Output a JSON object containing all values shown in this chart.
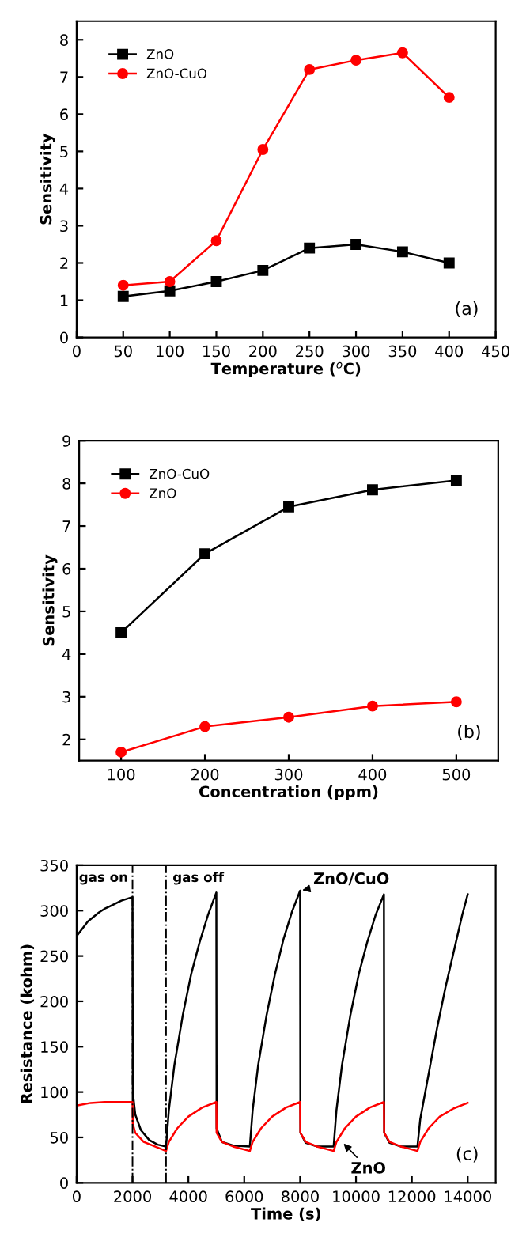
{
  "chart_data": [
    {
      "type": "line",
      "xlabel": "Temperature ($^{o}$C)",
      "ylabel": "Sensitivity",
      "x": [
        50,
        100,
        150,
        200,
        250,
        300,
        350,
        400
      ],
      "xlim": [
        0,
        450
      ],
      "xticks": [
        0,
        50,
        100,
        150,
        200,
        250,
        300,
        350,
        400,
        450
      ],
      "ylim": [
        0,
        8.5
      ],
      "yticks": [
        0,
        1,
        2,
        3,
        4,
        5,
        6,
        7,
        8
      ],
      "legend": "top left",
      "annotations": [
        "(a)"
      ],
      "series": [
        {
          "name": "ZnO",
          "color": "#000000",
          "marker": "square",
          "values": [
            1.1,
            1.25,
            1.5,
            1.8,
            2.4,
            2.5,
            2.3,
            2.0
          ]
        },
        {
          "name": "ZnO-CuO",
          "color": "#ff0000",
          "marker": "circle",
          "values": [
            1.4,
            1.5,
            2.6,
            5.05,
            7.2,
            7.45,
            7.65,
            6.45
          ]
        }
      ]
    },
    {
      "type": "line",
      "xlabel": "Concentration (ppm)",
      "ylabel": "Sensitivity",
      "x": [
        100,
        200,
        300,
        400,
        500
      ],
      "xlim": [
        50,
        550
      ],
      "xticks": [
        100,
        200,
        300,
        400,
        500
      ],
      "ylim": [
        1.5,
        9
      ],
      "yticks": [
        2,
        3,
        4,
        5,
        6,
        7,
        8,
        9
      ],
      "legend": "top left",
      "annotations": [
        "(b)"
      ],
      "series": [
        {
          "name": "ZnO-CuO",
          "color": "#000000",
          "marker": "square",
          "values": [
            4.5,
            6.35,
            7.45,
            7.85,
            8.07
          ]
        },
        {
          "name": "ZnO",
          "color": "#ff0000",
          "marker": "circle",
          "values": [
            1.7,
            2.3,
            2.52,
            2.78,
            2.88
          ]
        }
      ]
    },
    {
      "type": "line",
      "xlabel": "Time (s)",
      "ylabel": "Resistance (kohm)",
      "xlim": [
        0,
        15000
      ],
      "xticks": [
        0,
        2000,
        4000,
        6000,
        8000,
        10000,
        12000,
        14000
      ],
      "ylim": [
        0,
        350
      ],
      "yticks": [
        0,
        50,
        100,
        150,
        200,
        250,
        300,
        350
      ],
      "ref_lines": [
        {
          "axis": "x",
          "value": 2000,
          "label": "gas on",
          "line_style": "dashdot"
        },
        {
          "axis": "x",
          "value": 3200,
          "label": "gas off",
          "line_style": "dashdot"
        }
      ],
      "annotations": [
        {
          "text": "ZnO/CuO",
          "x": 8000,
          "y": 322
        },
        {
          "text": "ZnO",
          "x": 9500,
          "y": 45
        },
        "(c)"
      ],
      "series": [
        {
          "color": "#000000",
          "x": [
            0,
            200,
            400,
            600,
            800,
            1000,
            1200,
            1400,
            1600,
            1800,
            2000,
            2010,
            2100,
            2300,
            2600,
            2900,
            3200,
            3300,
            3500,
            3800,
            4100,
            4400,
            4700,
            5000,
            5010,
            5200,
            5600,
            6200,
            6300,
            6500,
            6800,
            7100,
            7400,
            7700,
            8000,
            8010,
            8200,
            8600,
            9200,
            9300,
            9500,
            9800,
            10100,
            10400,
            10700,
            11000,
            11010,
            11200,
            11600,
            12200,
            12300,
            12600,
            12900,
            13200,
            13500,
            13800,
            14000
          ],
          "values": [
            272,
            280,
            288,
            293,
            298,
            302,
            305,
            308,
            311,
            313,
            315,
            100,
            75,
            58,
            47,
            42,
            40,
            80,
            130,
            185,
            230,
            265,
            295,
            320,
            60,
            45,
            41,
            40,
            80,
            130,
            185,
            230,
            268,
            298,
            322,
            55,
            44,
            40,
            40,
            80,
            130,
            185,
            230,
            265,
            295,
            318,
            55,
            44,
            40,
            40,
            70,
            120,
            170,
            215,
            255,
            295,
            318
          ]
        },
        {
          "color": "#ff0000",
          "x": [
            0,
            500,
            1000,
            2000,
            2010,
            2100,
            2400,
            2800,
            3200,
            3300,
            3600,
            4000,
            4500,
            5000,
            5010,
            5200,
            5600,
            6200,
            6300,
            6600,
            7000,
            7500,
            8000,
            8010,
            8200,
            8600,
            9200,
            9300,
            9600,
            10000,
            10500,
            11000,
            11010,
            11200,
            11600,
            12200,
            12300,
            12600,
            13000,
            13500,
            14000
          ],
          "values": [
            85,
            88,
            89,
            89,
            65,
            55,
            45,
            40,
            35,
            45,
            60,
            73,
            83,
            89,
            55,
            45,
            40,
            35,
            45,
            60,
            73,
            83,
            89,
            55,
            45,
            40,
            35,
            45,
            60,
            73,
            83,
            89,
            55,
            45,
            40,
            35,
            45,
            60,
            73,
            82,
            88
          ]
        }
      ]
    }
  ]
}
